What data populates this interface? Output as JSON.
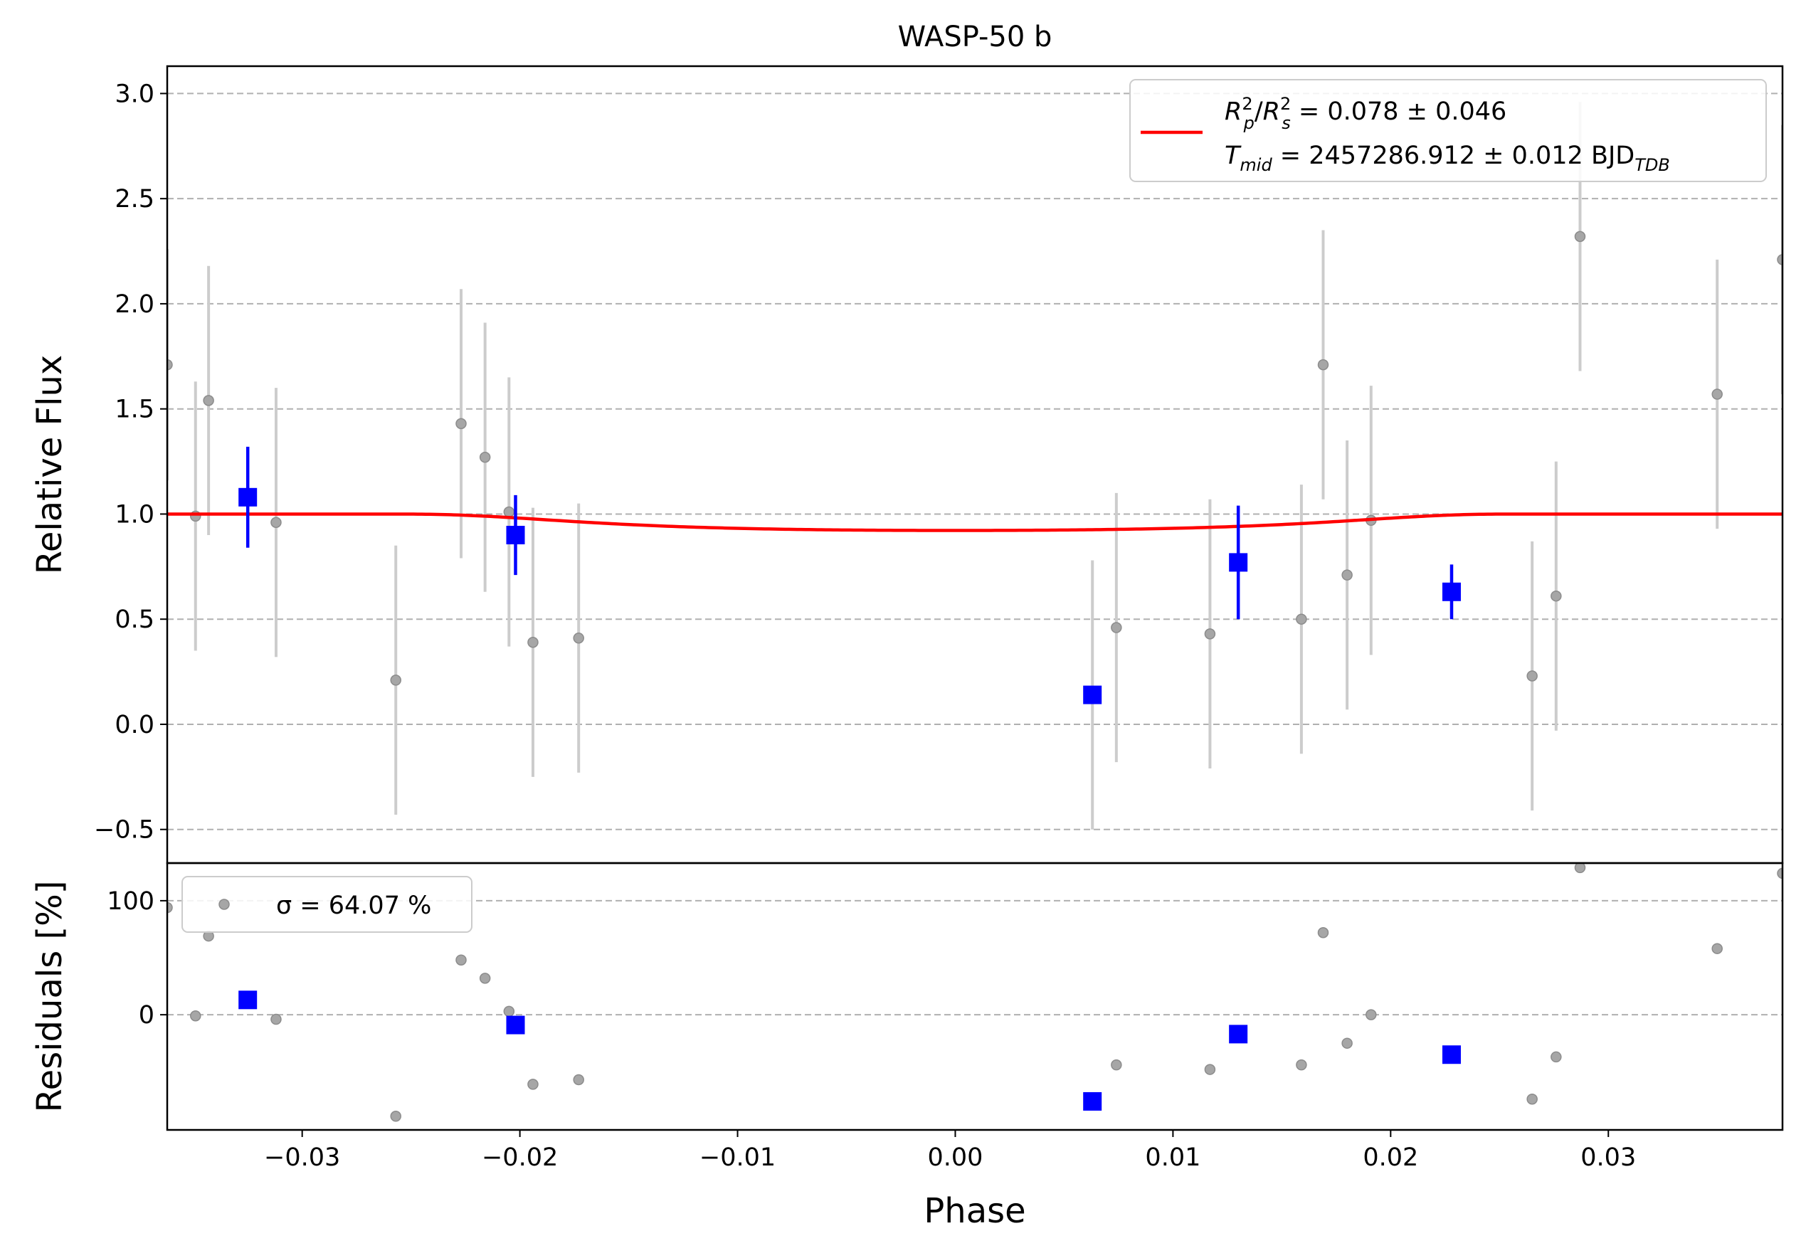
{
  "chart_data": [
    {
      "type": "scatter",
      "panel": "main",
      "title": "WASP-50 b",
      "ylabel": "Relative Flux",
      "xlim": [
        -0.0362,
        0.038
      ],
      "ylim": [
        -0.66,
        3.13
      ],
      "xticks": [
        -0.03,
        -0.02,
        -0.01,
        0.0,
        0.01,
        0.02,
        0.03
      ],
      "xtick_labels": [
        "−0.03",
        "−0.02",
        "−0.01",
        "0.00",
        "0.01",
        "0.02",
        "0.03"
      ],
      "yticks": [
        -0.5,
        0.0,
        0.5,
        1.0,
        1.5,
        2.0,
        2.5,
        3.0
      ],
      "ytick_labels": [
        "−0.5",
        "0.0",
        "0.5",
        "1.0",
        "1.5",
        "2.0",
        "2.5",
        "3.0"
      ],
      "grid": "horizontal dashed",
      "legend_placement": "top-right",
      "legend": {
        "line1": "R²ₚ/R²ₛ = 0.078 ± 0.046",
        "line2": "Tₘᵢ𝒹 = 2457286.912 ± 0.012 BJD_TDB"
      },
      "series": [
        {
          "kind": "raw",
          "color": "#a6a6a6",
          "points": [
            {
              "x": -0.0362,
              "y": 1.71,
              "err": 0.55
            },
            {
              "x": -0.0349,
              "y": 0.99,
              "err": 0.64
            },
            {
              "x": -0.0343,
              "y": 1.54,
              "err": 0.64
            },
            {
              "x": -0.0312,
              "y": 0.96,
              "err": 0.64
            },
            {
              "x": -0.0257,
              "y": 0.21,
              "err": 0.64
            },
            {
              "x": -0.0227,
              "y": 1.43,
              "err": 0.64
            },
            {
              "x": -0.0216,
              "y": 1.27,
              "err": 0.64
            },
            {
              "x": -0.0205,
              "y": 1.01,
              "err": 0.64
            },
            {
              "x": -0.0194,
              "y": 0.39,
              "err": 0.64
            },
            {
              "x": -0.0173,
              "y": 0.41,
              "err": 0.64
            },
            {
              "x": 0.0063,
              "y": 0.14,
              "err": 0.64
            },
            {
              "x": 0.0074,
              "y": 0.46,
              "err": 0.64
            },
            {
              "x": 0.0117,
              "y": 0.43,
              "err": 0.64
            },
            {
              "x": 0.0159,
              "y": 0.5,
              "err": 0.64
            },
            {
              "x": 0.0169,
              "y": 1.71,
              "err": 0.64
            },
            {
              "x": 0.018,
              "y": 0.71,
              "err": 0.64
            },
            {
              "x": 0.0191,
              "y": 0.97,
              "err": 0.64
            },
            {
              "x": 0.0265,
              "y": 0.23,
              "err": 0.64
            },
            {
              "x": 0.0276,
              "y": 0.61,
              "err": 0.64
            },
            {
              "x": 0.0287,
              "y": 2.32,
              "err": 0.64
            },
            {
              "x": 0.035,
              "y": 1.57,
              "err": 0.64
            },
            {
              "x": 0.038,
              "y": 2.21,
              "err": 0.64
            }
          ]
        },
        {
          "kind": "binned",
          "color": "#0000ff",
          "points": [
            {
              "x": -0.0325,
              "y": 1.08,
              "err": 0.24
            },
            {
              "x": -0.0202,
              "y": 0.9,
              "err": 0.19
            },
            {
              "x": 0.0063,
              "y": 0.14,
              "err": 0.0
            },
            {
              "x": 0.013,
              "y": 0.77,
              "err": 0.27
            },
            {
              "x": 0.0228,
              "y": 0.63,
              "err": 0.13
            }
          ]
        },
        {
          "kind": "model",
          "color": "#ff0000",
          "depth": 0.078,
          "t1": -0.026,
          "t2": -0.018,
          "t3": 0.018,
          "t4": 0.026
        }
      ]
    },
    {
      "type": "scatter",
      "panel": "residuals",
      "xlabel": "Phase",
      "ylabel": "Residuals [%]",
      "xlim": [
        -0.0362,
        0.038
      ],
      "ylim": [
        -101,
        133
      ],
      "yticks": [
        0,
        100
      ],
      "ytick_labels": [
        "0",
        "100"
      ],
      "grid": "horizontal dashed",
      "legend_placement": "top-left",
      "legend": {
        "label": "σ = 64.07 %"
      },
      "series": [
        {
          "kind": "raw",
          "color": "#a6a6a6",
          "points": [
            {
              "x": -0.0362,
              "y": 94
            },
            {
              "x": -0.0349,
              "y": -1
            },
            {
              "x": -0.0343,
              "y": 69
            },
            {
              "x": -0.0312,
              "y": -4
            },
            {
              "x": -0.0257,
              "y": -89
            },
            {
              "x": -0.0227,
              "y": 48
            },
            {
              "x": -0.0216,
              "y": 32
            },
            {
              "x": -0.0205,
              "y": 3
            },
            {
              "x": -0.0194,
              "y": -61
            },
            {
              "x": -0.0173,
              "y": -57
            },
            {
              "x": 0.0063,
              "y": -77
            },
            {
              "x": 0.0074,
              "y": -44
            },
            {
              "x": 0.0117,
              "y": -48
            },
            {
              "x": 0.0159,
              "y": -44
            },
            {
              "x": 0.0169,
              "y": 72
            },
            {
              "x": 0.018,
              "y": -25
            },
            {
              "x": 0.0191,
              "y": 0
            },
            {
              "x": 0.0265,
              "y": -74
            },
            {
              "x": 0.0276,
              "y": -37
            },
            {
              "x": 0.0287,
              "y": 129
            },
            {
              "x": 0.035,
              "y": 58
            },
            {
              "x": 0.038,
              "y": 124
            }
          ]
        },
        {
          "kind": "binned",
          "color": "#0000ff",
          "points": [
            {
              "x": -0.0325,
              "y": 13
            },
            {
              "x": -0.0202,
              "y": -9
            },
            {
              "x": 0.0063,
              "y": -76
            },
            {
              "x": 0.013,
              "y": -17
            },
            {
              "x": 0.0228,
              "y": -35
            }
          ]
        }
      ]
    }
  ]
}
